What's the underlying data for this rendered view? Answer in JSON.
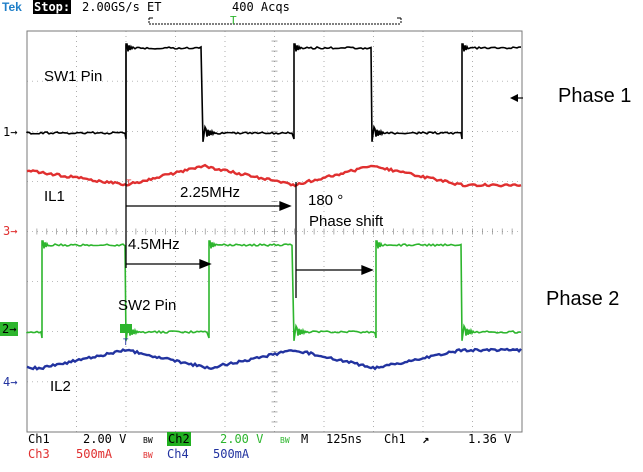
{
  "header": {
    "brand": "Tek",
    "state": "Stop:",
    "sample_rate": "2.00GS/s ET",
    "acquisitions": "400 Acqs"
  },
  "annotations": {
    "sw1": "SW1 Pin",
    "il1": "IL1",
    "freq1": "2.25MHz",
    "deg": "180 °",
    "phase_shift": "Phase shift",
    "freq2": "4.5MHz",
    "sw2": "SW2 Pin",
    "il2": "IL2"
  },
  "phase_labels": {
    "p1": "Phase 1",
    "p2": "Phase 2"
  },
  "channel_markers": {
    "ch1": "1→",
    "ch3": "3→",
    "ch2": "2→",
    "ch4": "4→"
  },
  "status": {
    "row1": {
      "ch1": "Ch1",
      "ch1_scale": "2.00 V",
      "bw1": "BW",
      "ch2": "Ch2",
      "ch2_scale": "2.00 V",
      "bw2": "BW",
      "mode": "M",
      "timebase": "125ns",
      "trig_src": "Ch1",
      "trig_slope": "↗",
      "trig_level": "1.36 V"
    },
    "row2": {
      "ch3": "Ch3",
      "ch3_scale": "500mA",
      "bw3": "BW",
      "ch4": "Ch4",
      "ch4_scale": "500mA"
    }
  },
  "colors": {
    "ch1": "#000000",
    "ch2": "#2db52d",
    "ch3": "#e03030",
    "ch4": "#2233a0",
    "grid": "#7a7a7a"
  }
}
